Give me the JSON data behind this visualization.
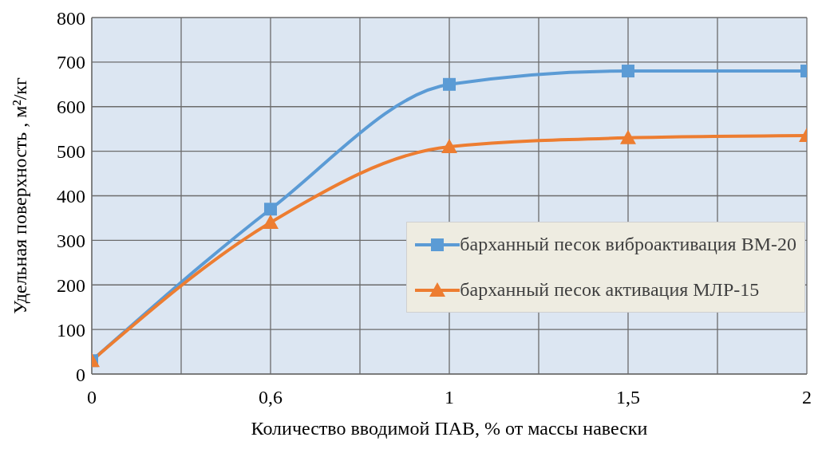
{
  "chart_data": {
    "type": "line",
    "xlabel": "Количество вводимой ПАВ,  % от массы навески",
    "ylabel": "Удельная поверхность , м²/кг",
    "categories": [
      "0",
      "0,6",
      "1",
      "1,5",
      "2"
    ],
    "series": [
      {
        "name": "барханный песок виброактивация ВМ-20",
        "color": "#5b9bd5",
        "marker": "square",
        "values": [
          30,
          370,
          650,
          680,
          680
        ]
      },
      {
        "name": "барханный песок активация МЛР-15",
        "color": "#ed7d31",
        "marker": "triangle",
        "values": [
          30,
          340,
          510,
          530,
          535
        ]
      }
    ],
    "ylim": [
      0,
      800
    ],
    "yticks": [
      0,
      100,
      200,
      300,
      400,
      500,
      600,
      700,
      800
    ],
    "grid": true,
    "legend": "bottom right"
  }
}
